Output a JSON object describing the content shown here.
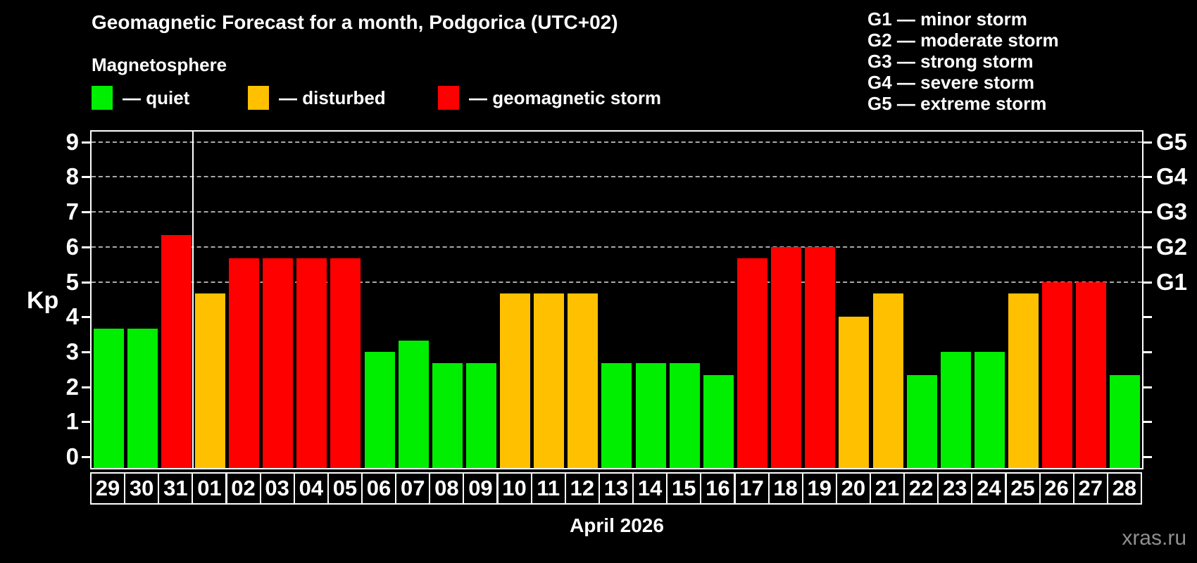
{
  "header": {
    "title": "Geomagnetic Forecast for a month, Podgorica (UTC+02)",
    "subtitle": "Magnetosphere"
  },
  "legend": {
    "items": [
      {
        "key": "quiet",
        "label": "— quiet",
        "color": "#00EE00"
      },
      {
        "key": "disturbed",
        "label": "— disturbed",
        "color": "#FFC000"
      },
      {
        "key": "storm",
        "label": "— geomagnetic storm",
        "color": "#FF0000"
      }
    ]
  },
  "storm_scale": {
    "items": [
      "G1 — minor storm",
      "G2 — moderate storm",
      "G3 — strong storm",
      "G4 — severe storm",
      "G5 — extreme storm"
    ]
  },
  "watermark": "xras.ru",
  "colors": {
    "background": "#000000",
    "axis": "#FFFFFF",
    "gridline": "#A9A9A9",
    "text": "#FFFFFF",
    "watermark": "#8F8F8F"
  },
  "chart_data": {
    "type": "bar",
    "title": "Geomagnetic Forecast for a month, Podgorica (UTC+02)",
    "ylabel": "Kp",
    "xlabel": "April 2026",
    "ylim": [
      0,
      9
    ],
    "yticks": [
      0,
      1,
      2,
      3,
      4,
      5,
      6,
      7,
      8,
      9
    ],
    "grid": "dashed horizontal lines at Kp 5,6,7,8,9",
    "legend_position": "top-left",
    "right_axis_labels": [
      {
        "kp": 5,
        "label": "G1"
      },
      {
        "kp": 6,
        "label": "G2"
      },
      {
        "kp": 7,
        "label": "G3"
      },
      {
        "kp": 8,
        "label": "G4"
      },
      {
        "kp": 9,
        "label": "G5"
      }
    ],
    "separator_after_index": 2,
    "categories": [
      "29",
      "30",
      "31",
      "01",
      "02",
      "03",
      "04",
      "05",
      "06",
      "07",
      "08",
      "09",
      "10",
      "11",
      "12",
      "13",
      "14",
      "15",
      "16",
      "17",
      "18",
      "19",
      "20",
      "21",
      "22",
      "23",
      "24",
      "25",
      "26",
      "27",
      "28"
    ],
    "values": [
      3.67,
      3.67,
      6.33,
      4.67,
      5.67,
      5.67,
      5.67,
      5.67,
      3.0,
      3.33,
      2.67,
      2.67,
      4.67,
      4.67,
      4.67,
      2.67,
      2.67,
      2.67,
      2.33,
      5.67,
      6.0,
      6.0,
      4.0,
      4.67,
      2.33,
      3.0,
      3.0,
      4.67,
      5.0,
      5.0,
      2.33
    ],
    "statuses": [
      "quiet",
      "quiet",
      "storm",
      "disturbed",
      "storm",
      "storm",
      "storm",
      "storm",
      "quiet",
      "quiet",
      "quiet",
      "quiet",
      "disturbed",
      "disturbed",
      "disturbed",
      "quiet",
      "quiet",
      "quiet",
      "quiet",
      "storm",
      "storm",
      "storm",
      "disturbed",
      "disturbed",
      "quiet",
      "quiet",
      "quiet",
      "disturbed",
      "storm",
      "storm",
      "quiet"
    ]
  }
}
